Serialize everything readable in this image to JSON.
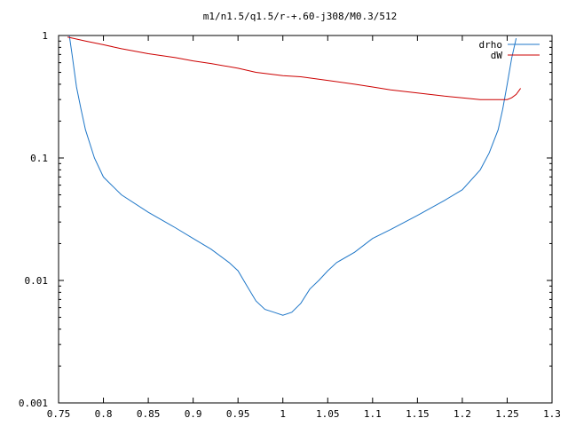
{
  "chart_data": {
    "type": "line",
    "title": "m1/n1.5/q1.5/r-+.60-j308/M0.3/512",
    "xlabel": "",
    "ylabel": "",
    "xlim": [
      0.75,
      1.3
    ],
    "ylim": [
      0.001,
      1
    ],
    "yscale": "log",
    "grid": false,
    "legend_position": "top-right",
    "x_ticks": [
      "0.75",
      "0.8",
      "0.85",
      "0.9",
      "0.95",
      "1",
      "1.05",
      "1.1",
      "1.15",
      "1.2",
      "1.25",
      "1.3"
    ],
    "y_ticks": [
      "1",
      "0.1",
      "0.01",
      "0.001"
    ],
    "series": [
      {
        "name": "drho",
        "color": "#1f77c8",
        "x": [
          0.762,
          0.765,
          0.77,
          0.775,
          0.78,
          0.79,
          0.8,
          0.82,
          0.85,
          0.88,
          0.9,
          0.92,
          0.94,
          0.95,
          0.96,
          0.97,
          0.98,
          0.99,
          1.0,
          1.01,
          1.02,
          1.03,
          1.04,
          1.05,
          1.06,
          1.08,
          1.1,
          1.12,
          1.15,
          1.18,
          1.2,
          1.22,
          1.23,
          1.24,
          1.245,
          1.25,
          1.255,
          1.26
        ],
        "y": [
          1.0,
          0.7,
          0.38,
          0.25,
          0.17,
          0.1,
          0.07,
          0.05,
          0.036,
          0.027,
          0.022,
          0.018,
          0.014,
          0.012,
          0.009,
          0.0068,
          0.0058,
          0.0055,
          0.0052,
          0.0055,
          0.0065,
          0.0085,
          0.01,
          0.012,
          0.014,
          0.017,
          0.022,
          0.026,
          0.034,
          0.045,
          0.055,
          0.08,
          0.11,
          0.17,
          0.25,
          0.4,
          0.65,
          0.95
        ]
      },
      {
        "name": "dW",
        "color": "#cc0000",
        "x": [
          0.76,
          0.78,
          0.8,
          0.82,
          0.85,
          0.88,
          0.9,
          0.92,
          0.95,
          0.97,
          0.98,
          1.0,
          1.02,
          1.03,
          1.05,
          1.08,
          1.1,
          1.12,
          1.15,
          1.18,
          1.2,
          1.22,
          1.24,
          1.25,
          1.255,
          1.26,
          1.265
        ],
        "y": [
          0.97,
          0.9,
          0.84,
          0.78,
          0.71,
          0.66,
          0.62,
          0.59,
          0.54,
          0.5,
          0.49,
          0.47,
          0.46,
          0.45,
          0.43,
          0.4,
          0.38,
          0.36,
          0.34,
          0.32,
          0.31,
          0.3,
          0.3,
          0.3,
          0.31,
          0.33,
          0.37
        ]
      }
    ]
  }
}
